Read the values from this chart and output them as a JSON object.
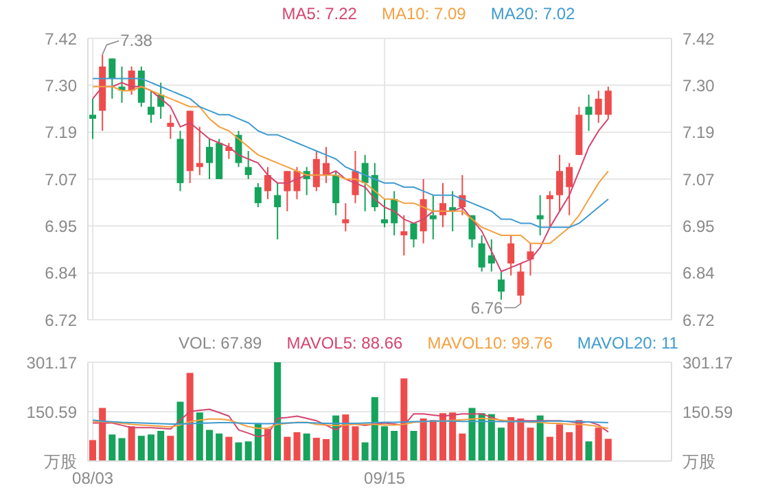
{
  "chart_data": [
    {
      "type": "candlestick",
      "series": [
        {
          "ohlc": [
            [
              7.23,
              7.27,
              7.17,
              7.22
            ],
            [
              7.24,
              7.38,
              7.19,
              7.35
            ],
            [
              7.37,
              7.37,
              7.27,
              7.32
            ],
            [
              7.3,
              7.35,
              7.26,
              7.29
            ],
            [
              7.29,
              7.35,
              7.28,
              7.34
            ],
            [
              7.34,
              7.35,
              7.25,
              7.26
            ],
            [
              7.25,
              7.29,
              7.21,
              7.23
            ],
            [
              7.28,
              7.31,
              7.22,
              7.25
            ],
            [
              7.2,
              7.23,
              7.17,
              7.21
            ],
            [
              7.17,
              7.19,
              7.04,
              7.06
            ],
            [
              7.09,
              7.24,
              7.06,
              7.24
            ],
            [
              7.1,
              7.2,
              7.08,
              7.11
            ],
            [
              7.15,
              7.17,
              7.07,
              7.11
            ],
            [
              7.16,
              7.17,
              7.07,
              7.07
            ],
            [
              7.14,
              7.16,
              7.12,
              7.15
            ],
            [
              7.18,
              7.19,
              7.1,
              7.11
            ],
            [
              7.1,
              7.14,
              7.07,
              7.08
            ],
            [
              7.05,
              7.06,
              7.0,
              7.01
            ],
            [
              7.04,
              7.1,
              7.02,
              7.08
            ],
            [
              7.03,
              7.06,
              6.92,
              7.0
            ],
            [
              7.04,
              7.09,
              6.99,
              7.09
            ],
            [
              7.04,
              7.1,
              7.02,
              7.09
            ],
            [
              7.09,
              7.1,
              7.03,
              7.07
            ],
            [
              7.05,
              7.14,
              7.04,
              7.12
            ],
            [
              7.08,
              7.15,
              7.06,
              7.11
            ],
            [
              7.08,
              7.09,
              6.98,
              7.01
            ],
            [
              6.96,
              7.01,
              6.94,
              6.97
            ],
            [
              7.03,
              7.14,
              7.01,
              7.09
            ],
            [
              7.11,
              7.13,
              6.99,
              7.06
            ],
            [
              7.08,
              7.11,
              6.99,
              7.0
            ],
            [
              6.97,
              7.02,
              6.95,
              6.96
            ],
            [
              7.02,
              7.04,
              6.93,
              6.96
            ],
            [
              6.93,
              6.98,
              6.88,
              6.94
            ],
            [
              6.96,
              6.96,
              6.9,
              6.92
            ],
            [
              6.94,
              7.07,
              6.91,
              7.02
            ],
            [
              6.98,
              7.03,
              6.92,
              6.97
            ],
            [
              6.98,
              7.06,
              6.95,
              7.01
            ],
            [
              7.0,
              7.04,
              6.94,
              6.99
            ],
            [
              7.0,
              7.08,
              6.98,
              7.03
            ],
            [
              6.98,
              6.98,
              6.9,
              6.92
            ],
            [
              6.91,
              6.93,
              6.84,
              6.85
            ],
            [
              6.88,
              6.92,
              6.84,
              6.86
            ],
            [
              6.82,
              6.84,
              6.77,
              6.79
            ],
            [
              6.86,
              6.93,
              6.83,
              6.91
            ],
            [
              6.78,
              6.86,
              6.76,
              6.84
            ],
            [
              6.87,
              6.91,
              6.83,
              6.89
            ],
            [
              6.98,
              7.03,
              6.93,
              6.97
            ],
            [
              7.02,
              7.04,
              6.95,
              7.03
            ],
            [
              7.03,
              7.13,
              6.99,
              7.09
            ],
            [
              7.05,
              7.11,
              6.98,
              7.1
            ],
            [
              7.13,
              7.25,
              7.13,
              7.23
            ],
            [
              7.25,
              7.28,
              7.19,
              7.23
            ],
            [
              7.23,
              7.29,
              7.21,
              7.27
            ],
            [
              7.23,
              7.3,
              7.22,
              7.29
            ],
            null,
            null,
            null,
            null,
            null,
            null
          ],
          "colors": [
            "#16a35c",
            "#ee4c4c",
            "#16a35c",
            "#16a35c",
            "#ee4c4c",
            "#16a35c",
            "#16a35c",
            "#16a35c",
            "#ee4c4c",
            "#16a35c",
            "#ee4c4c",
            "#ee4c4c",
            "#16a35c",
            "#16a35c",
            "#ee4c4c",
            "#16a35c",
            "#16a35c",
            "#16a35c",
            "#ee4c4c",
            "#16a35c",
            "#ee4c4c",
            "#ee4c4c",
            "#16a35c",
            "#ee4c4c",
            "#ee4c4c",
            "#16a35c",
            "#ee4c4c",
            "#ee4c4c",
            "#16a35c",
            "#16a35c",
            "#16a35c",
            "#16a35c",
            "#ee4c4c",
            "#16a35c",
            "#ee4c4c",
            "#16a35c",
            "#ee4c4c",
            "#16a35c",
            "#ee4c4c",
            "#16a35c",
            "#16a35c",
            "#16a35c",
            "#16a35c",
            "#ee4c4c",
            "#ee4c4c",
            "#ee4c4c",
            "#16a35c",
            "#ee4c4c",
            "#ee4c4c",
            "#ee4c4c",
            "#ee4c4c",
            "#16a35c",
            "#ee4c4c",
            "#ee4c4c",
            null,
            null,
            null,
            null,
            null,
            null
          ]
        },
        {
          "type": "line",
          "name": "MA5: 7.22",
          "color": "#d4456e",
          "values": [
            7.27,
            7.3,
            7.3,
            7.31,
            7.3,
            7.3,
            7.29,
            7.27,
            7.25,
            7.2,
            7.21,
            7.19,
            7.17,
            7.16,
            7.15,
            7.13,
            7.12,
            7.11,
            7.08,
            7.06,
            7.06,
            7.07,
            7.08,
            7.08,
            7.08,
            7.09,
            7.07,
            7.06,
            7.05,
            7.02,
            7.0,
            6.99,
            6.97,
            6.96,
            6.97,
            6.99,
            6.99,
            6.99,
            7.0,
            6.97,
            6.94,
            6.89,
            6.84,
            6.85,
            6.86,
            6.87,
            6.9,
            6.95,
            6.99,
            7.03,
            7.09,
            7.15,
            7.19,
            7.22,
            null,
            null,
            null,
            null,
            null,
            null
          ]
        },
        {
          "type": "line",
          "name": "MA10: 7.09",
          "color": "#f4a041",
          "values": [
            7.3,
            7.3,
            7.3,
            7.29,
            7.29,
            7.3,
            7.29,
            7.28,
            7.27,
            7.26,
            7.25,
            7.25,
            7.22,
            7.2,
            7.19,
            7.17,
            7.15,
            7.13,
            7.12,
            7.11,
            7.1,
            7.09,
            7.08,
            7.08,
            7.08,
            7.08,
            7.07,
            7.07,
            7.06,
            7.04,
            7.02,
            7.02,
            7.01,
            7.01,
            7.0,
            6.99,
            6.99,
            6.99,
            6.99,
            6.97,
            6.95,
            6.94,
            6.93,
            6.93,
            6.93,
            6.91,
            6.91,
            6.91,
            6.93,
            6.95,
            6.98,
            7.02,
            7.06,
            7.09,
            null,
            null,
            null,
            null,
            null,
            null
          ]
        },
        {
          "type": "line",
          "name": "MA20: 7.02",
          "color": "#3f9bd0",
          "values": [
            7.32,
            7.32,
            7.32,
            7.32,
            7.32,
            7.32,
            7.31,
            7.3,
            7.29,
            7.28,
            7.27,
            7.25,
            7.24,
            7.23,
            7.23,
            7.22,
            7.21,
            7.19,
            7.18,
            7.18,
            7.17,
            7.16,
            7.15,
            7.14,
            7.13,
            7.12,
            7.1,
            7.09,
            7.08,
            7.07,
            7.06,
            7.06,
            7.05,
            7.05,
            7.04,
            7.03,
            7.03,
            7.03,
            7.02,
            7.01,
            7.0,
            6.99,
            6.97,
            6.97,
            6.96,
            6.96,
            6.95,
            6.95,
            6.95,
            6.95,
            6.96,
            6.98,
            7.0,
            7.02,
            null,
            null,
            null,
            null,
            null,
            null
          ]
        }
      ],
      "ylim": [
        6.72,
        7.42
      ],
      "yticks": [
        {
          "value": 6.72,
          "label": "6.72"
        },
        {
          "value": 6.8367,
          "label": "6.84"
        },
        {
          "value": 6.9533,
          "label": "6.95"
        },
        {
          "value": 7.07,
          "label": "7.07"
        },
        {
          "value": 7.1867,
          "label": "7.19"
        },
        {
          "value": 7.3033,
          "label": "7.30"
        },
        {
          "value": 7.42,
          "label": "7.42"
        }
      ],
      "y2lim": [
        6.72,
        7.42
      ],
      "y2ticks": [
        {
          "value": 6.72,
          "label": "6.72"
        },
        {
          "value": 6.8367,
          "label": "6.84"
        },
        {
          "value": 6.9533,
          "label": "6.95"
        },
        {
          "value": 7.07,
          "label": "7.07"
        },
        {
          "value": 7.1867,
          "label": "7.19"
        },
        {
          "value": 7.3033,
          "label": "7.30"
        },
        {
          "value": 7.42,
          "label": "7.42"
        }
      ],
      "annotations": [
        "7.38",
        "6.76"
      ],
      "grid": true,
      "legend": "top",
      "tick_labels": "y"
    },
    {
      "type": "bar",
      "categories": [
        "08/03",
        null,
        null,
        null,
        null,
        null,
        null,
        null,
        null,
        null,
        null,
        null,
        null,
        null,
        null,
        null,
        null,
        null,
        null,
        null,
        null,
        null,
        null,
        null,
        null,
        null,
        null,
        null,
        null,
        null,
        "09/15",
        null,
        null,
        null,
        null,
        null,
        null,
        null,
        null,
        null,
        null,
        null,
        null,
        null,
        null,
        null,
        null,
        null,
        null,
        null,
        null,
        null,
        null,
        null,
        null,
        null,
        null,
        null,
        null,
        null
      ],
      "series": [
        {
          "name": "VOL: 67.89",
          "values": [
            64,
            162,
            81,
            70,
            106,
            77,
            81,
            92,
            77,
            181,
            269,
            148,
            95,
            84,
            74,
            57,
            60,
            116,
            98,
            301,
            74,
            88,
            84,
            71,
            67,
            139,
            142,
            106,
            57,
            195,
            106,
            92,
            252,
            92,
            130,
            125,
            146,
            148,
            84,
            162,
            146,
            143,
            102,
            134,
            130,
            102,
            139,
            74,
            112,
            88,
            125,
            60,
            102,
            67.89,
            null,
            null,
            null,
            null,
            null,
            null
          ],
          "colors": [
            "#ee4c4c",
            "#ee4c4c",
            "#16a35c",
            "#16a35c",
            "#ee4c4c",
            "#16a35c",
            "#16a35c",
            "#16a35c",
            "#ee4c4c",
            "#16a35c",
            "#ee4c4c",
            "#16a35c",
            "#16a35c",
            "#16a35c",
            "#ee4c4c",
            "#16a35c",
            "#16a35c",
            "#16a35c",
            "#ee4c4c",
            "#16a35c",
            "#ee4c4c",
            "#ee4c4c",
            "#16a35c",
            "#ee4c4c",
            "#ee4c4c",
            "#16a35c",
            "#ee4c4c",
            "#ee4c4c",
            "#16a35c",
            "#16a35c",
            "#16a35c",
            "#16a35c",
            "#ee4c4c",
            "#16a35c",
            "#ee4c4c",
            "#ee4c4c",
            "#ee4c4c",
            "#ee4c4c",
            "#ee4c4c",
            "#16a35c",
            "#16a35c",
            "#16a35c",
            "#16a35c",
            "#ee4c4c",
            "#ee4c4c",
            "#ee4c4c",
            "#16a35c",
            "#ee4c4c",
            "#ee4c4c",
            "#ee4c4c",
            "#ee4c4c",
            "#16a35c",
            "#ee4c4c",
            "#ee4c4c",
            null,
            null,
            null,
            null,
            null,
            null
          ]
        },
        {
          "type": "line",
          "name": "MAVOL5: 88.66",
          "color": "#d4456e",
          "values": [
            116,
            116,
            116,
            109,
            102,
            102,
            102,
            100,
            98,
            125,
            151,
            155,
            158,
            148,
            137,
            95,
            85,
            74,
            81,
            130,
            133,
            137,
            130,
            123,
            109,
            95,
            116,
            113,
            109,
            113,
            116,
            113,
            109,
            144,
            144,
            140,
            137,
            140,
            144,
            144,
            144,
            133,
            123,
            123,
            123,
            123,
            123,
            123,
            123,
            120,
            116,
            120,
            110,
            88.66,
            null,
            null,
            null,
            null,
            null,
            null
          ]
        },
        {
          "type": "line",
          "name": "MAVOL10: 99.76",
          "color": "#f4a041",
          "values": [
            120,
            120,
            118,
            115,
            112,
            110,
            108,
            106,
            104,
            110,
            120,
            125,
            128,
            128,
            125,
            115,
            105,
            100,
            100,
            112,
            115,
            118,
            118,
            112,
            110,
            108,
            110,
            112,
            112,
            112,
            110,
            110,
            112,
            118,
            120,
            122,
            122,
            124,
            126,
            128,
            130,
            128,
            125,
            122,
            120,
            118,
            118,
            115,
            115,
            112,
            112,
            110,
            105,
            99.76,
            null,
            null,
            null,
            null,
            null,
            null
          ]
        },
        {
          "type": "line",
          "name": "MAVOL20: 11",
          "color": "#3f9bd0",
          "values": [
            125,
            122,
            120,
            118,
            117,
            116,
            115,
            114,
            113,
            113,
            114,
            115,
            116,
            117,
            117,
            116,
            115,
            114,
            114,
            115,
            116,
            117,
            117,
            116,
            115,
            115,
            115,
            115,
            116,
            117,
            118,
            118,
            119,
            120,
            121,
            122,
            122,
            122,
            121,
            121,
            121,
            121,
            120,
            120,
            120,
            120,
            121,
            122,
            122,
            121,
            120,
            119,
            118,
            117,
            null,
            null,
            null,
            null,
            null,
            null
          ]
        }
      ],
      "ylim": [
        0,
        301.17
      ],
      "yticks": [
        {
          "value": 0,
          "label": "万股"
        },
        150.59,
        301.17
      ],
      "y2lim": [
        0,
        301.17
      ],
      "y2ticks": [
        {
          "value": 0,
          "label": "万股"
        },
        150.59,
        301.17
      ],
      "grid": true,
      "legend": "top"
    }
  ]
}
